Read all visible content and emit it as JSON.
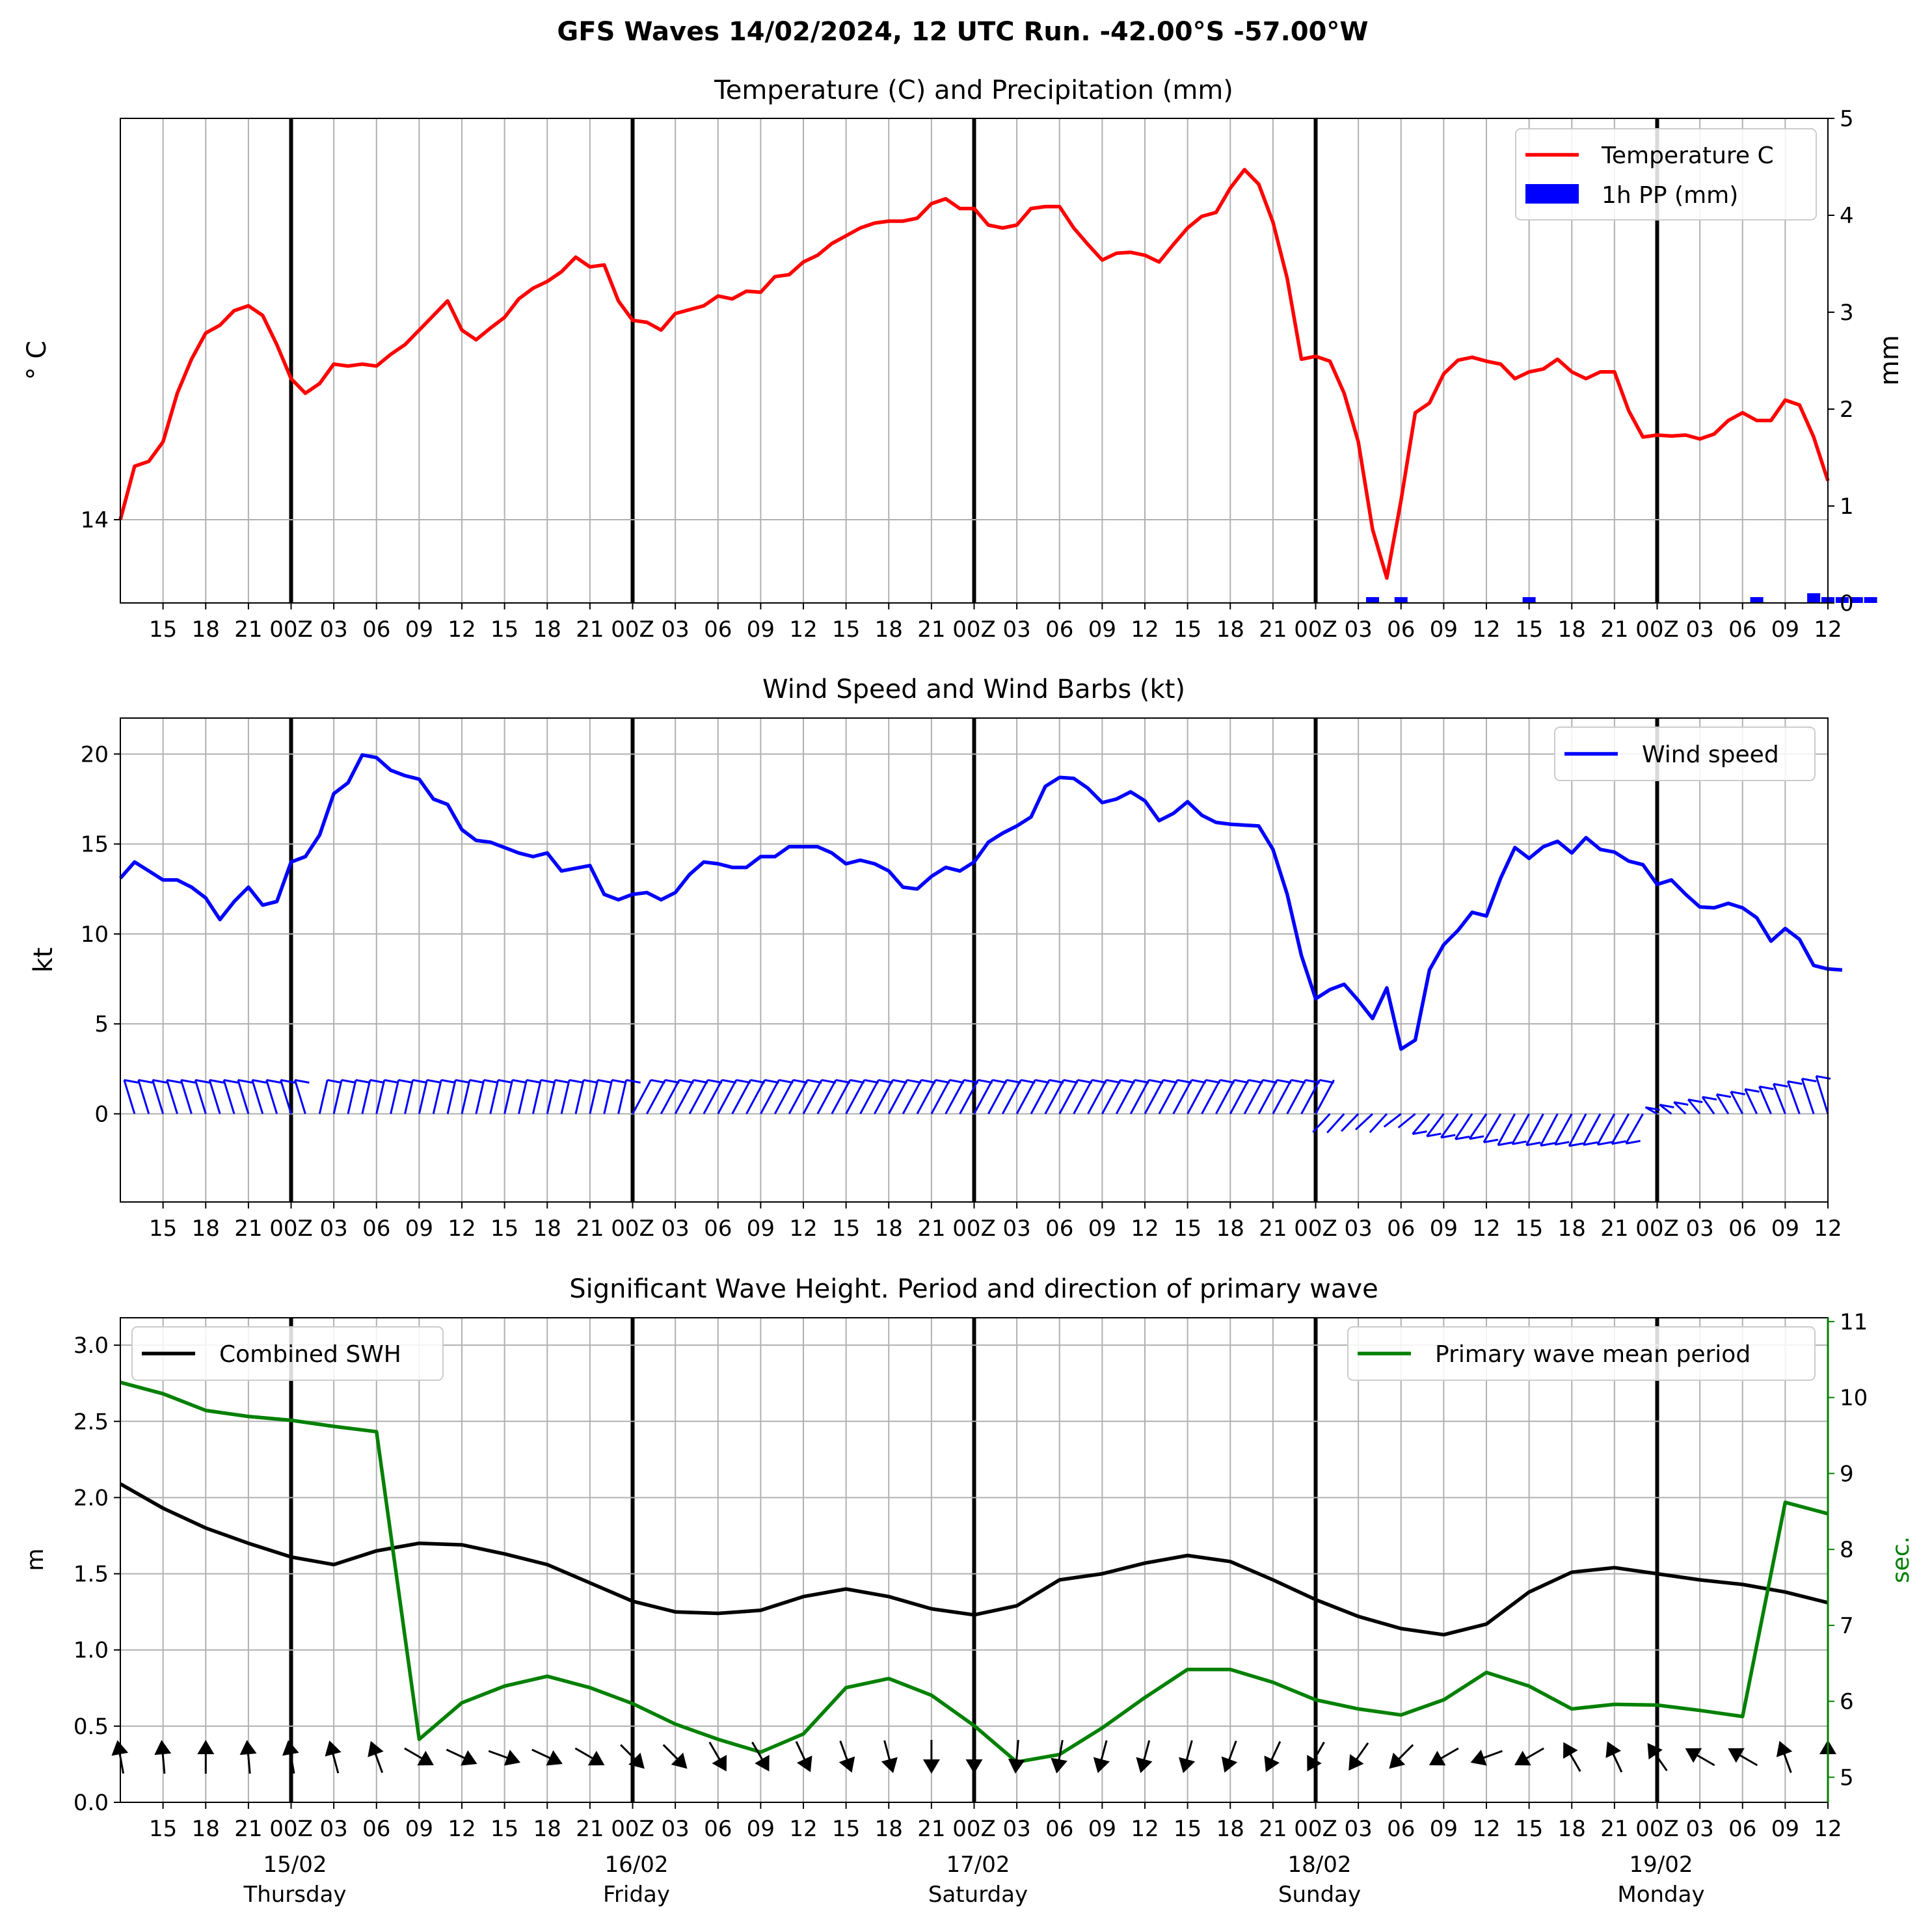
{
  "suptitle": "GFS Waves 14/02/2024, 12 UTC Run. -42.00°S -57.00°W",
  "colors": {
    "temperature": "#ff0000",
    "precip": "#0000ff",
    "wind": "#0000ff",
    "swh": "#000000",
    "period": "#008000",
    "grid": "#b0b0b0"
  },
  "x_tick_labels": [
    "15",
    "18",
    "21",
    "00Z",
    "03",
    "06",
    "09",
    "12",
    "15",
    "18",
    "21",
    "00Z",
    "03",
    "06",
    "09",
    "12",
    "15",
    "18",
    "21",
    "00Z",
    "03",
    "06",
    "09",
    "12",
    "15",
    "18",
    "21",
    "00Z",
    "03",
    "06",
    "09",
    "12",
    "15",
    "18",
    "21",
    "00Z",
    "03",
    "06",
    "09",
    "12"
  ],
  "day_labels": [
    {
      "date": "15/02",
      "day": "Thursday"
    },
    {
      "date": "16/02",
      "day": "Friday"
    },
    {
      "date": "17/02",
      "day": "Saturday"
    },
    {
      "date": "18/02",
      "day": "Sunday"
    },
    {
      "date": "19/02",
      "day": "Monday"
    }
  ],
  "chart_data": [
    {
      "type": "line",
      "title": "Temperature (C) and Precipitation (mm)",
      "ylabel": "° C",
      "y2label": "mm",
      "xlim_hours": [
        0,
        120
      ],
      "x_step_hours": 1,
      "y_ticks": [
        14
      ],
      "y_tick_labels": [
        "14"
      ],
      "y2lim": [
        0,
        5
      ],
      "y2_ticks": [
        0,
        1,
        2,
        3,
        4,
        5
      ],
      "legend": [
        "Temperature C",
        "1h PP (mm)"
      ],
      "legend_loc": "upper right",
      "grid": true,
      "series": [
        {
          "name": "Temperature C",
          "color": "#ff0000",
          "values": [
            14.0,
            14.55,
            14.6,
            14.8,
            15.3,
            15.65,
            15.92,
            16.0,
            16.15,
            16.2,
            16.1,
            15.8,
            15.45,
            15.3,
            15.4,
            15.6,
            15.58,
            15.6,
            15.58,
            15.7,
            15.8,
            15.95,
            16.1,
            16.25,
            15.95,
            15.85,
            15.97,
            16.08,
            16.27,
            16.38,
            16.45,
            16.55,
            16.7,
            16.6,
            16.62,
            16.25,
            16.05,
            16.03,
            15.95,
            16.12,
            16.16,
            16.2,
            16.3,
            16.27,
            16.35,
            16.34,
            16.5,
            16.52,
            16.65,
            16.72,
            16.84,
            16.92,
            17.0,
            17.05,
            17.07,
            17.07,
            17.1,
            17.25,
            17.3,
            17.2,
            17.2,
            17.03,
            17.0,
            17.03,
            17.2,
            17.22,
            17.22,
            17.0,
            16.83,
            16.67,
            16.74,
            16.75,
            16.72,
            16.65,
            16.83,
            17.0,
            17.12,
            17.16,
            17.41,
            17.6,
            17.45,
            17.06,
            16.48,
            15.65,
            15.68,
            15.63,
            15.3,
            14.8,
            13.9,
            13.4,
            14.2,
            15.1,
            15.2,
            15.5,
            15.64,
            15.67,
            15.63,
            15.6,
            15.45,
            15.52,
            15.55,
            15.65,
            15.52,
            15.45,
            15.52,
            15.52,
            15.12,
            14.85,
            14.87,
            14.86,
            14.87,
            14.83,
            14.88,
            15.02,
            15.1,
            15.02,
            15.02,
            15.23,
            15.18,
            14.85,
            14.4
          ]
        },
        {
          "name": "1h PP (mm)",
          "color": "#0000ff",
          "axis": "right",
          "values": [
            0,
            0,
            0,
            0,
            0,
            0,
            0,
            0,
            0,
            0,
            0,
            0,
            0,
            0,
            0,
            0,
            0,
            0,
            0,
            0,
            0,
            0,
            0,
            0,
            0,
            0,
            0,
            0,
            0,
            0,
            0,
            0,
            0,
            0,
            0,
            0,
            0,
            0,
            0,
            0,
            0,
            0,
            0,
            0,
            0,
            0,
            0,
            0,
            0,
            0,
            0,
            0,
            0,
            0,
            0,
            0,
            0,
            0,
            0,
            0,
            0,
            0,
            0,
            0,
            0,
            0,
            0,
            0,
            0,
            0,
            0,
            0,
            0,
            0,
            0,
            0,
            0,
            0,
            0,
            0,
            0,
            0,
            0,
            0,
            0,
            0,
            0,
            0,
            0.06,
            0,
            0.06,
            0,
            0,
            0,
            0,
            0,
            0,
            0,
            0,
            0.06,
            0,
            0,
            0,
            0,
            0,
            0,
            0,
            0,
            0,
            0,
            0,
            0,
            0,
            0,
            0,
            0.06,
            0,
            0,
            0,
            0.1,
            0.06,
            0.06,
            0.06,
            0.06,
            0,
            0
          ]
        }
      ]
    },
    {
      "type": "line",
      "title": "Wind Speed and Wind Barbs (kt)",
      "ylabel": "kt",
      "xlim_hours": [
        0,
        120
      ],
      "x_step_hours": 1,
      "ylim": [
        -4.9,
        22
      ],
      "y_ticks": [
        0,
        5,
        10,
        15,
        20
      ],
      "legend": [
        "Wind speed"
      ],
      "legend_loc": "upper right",
      "grid": true,
      "series": [
        {
          "name": "Wind speed",
          "color": "#0000ff",
          "values": [
            13.1,
            14.0,
            13.5,
            13.0,
            13.0,
            12.6,
            12.0,
            10.8,
            11.8,
            12.6,
            11.6,
            11.8,
            14.0,
            14.3,
            15.5,
            17.8,
            18.4,
            19.95,
            19.8,
            19.1,
            18.8,
            18.6,
            17.5,
            17.2,
            15.8,
            15.2,
            15.1,
            14.8,
            14.5,
            14.3,
            14.5,
            13.5,
            13.65,
            13.8,
            12.2,
            11.9,
            12.2,
            12.3,
            11.9,
            12.3,
            13.3,
            14.0,
            13.9,
            13.7,
            13.7,
            14.3,
            14.3,
            14.85,
            14.85,
            14.85,
            14.5,
            13.9,
            14.1,
            13.9,
            13.5,
            12.6,
            12.5,
            13.2,
            13.7,
            13.5,
            14.0,
            15.1,
            15.6,
            16.0,
            16.5,
            18.2,
            18.7,
            18.65,
            18.1,
            17.3,
            17.5,
            17.9,
            17.4,
            16.3,
            16.7,
            17.35,
            16.6,
            16.2,
            16.1,
            16.05,
            16.0,
            14.7,
            12.2,
            8.8,
            6.4,
            6.9,
            7.2,
            6.3,
            5.3,
            7.0,
            3.6,
            4.1,
            8.0,
            9.4,
            10.2,
            11.2,
            11.0,
            13.1,
            14.8,
            14.2,
            14.85,
            15.15,
            14.5,
            15.35,
            14.7,
            14.55,
            14.05,
            13.85,
            12.75,
            13.0,
            12.2,
            11.5,
            11.45,
            11.7,
            11.45,
            10.9,
            9.6,
            10.3,
            9.7,
            8.25,
            8.05,
            8.0
          ]
        }
      ]
    },
    {
      "type": "line",
      "title": "Significant Wave Height. Period and direction of primary wave",
      "ylabel": "m",
      "y2label": "sec.",
      "xlim_hours": [
        0,
        120
      ],
      "x_step_hours": 3,
      "ylim": [
        0,
        3.18
      ],
      "y_ticks": [
        0.0,
        0.5,
        1.0,
        1.5,
        2.0,
        2.5,
        3.0
      ],
      "y2lim": [
        4.67,
        11.05
      ],
      "y2_ticks": [
        5,
        6,
        7,
        8,
        9,
        10,
        11
      ],
      "legend_left": [
        "Combined SWH"
      ],
      "legend_right": [
        "Primary wave mean period"
      ],
      "grid": true,
      "series": [
        {
          "name": "Combined SWH",
          "color": "#000000",
          "values": [
            2.09,
            1.93,
            1.8,
            1.7,
            1.61,
            1.56,
            1.65,
            1.7,
            1.69,
            1.63,
            1.56,
            1.44,
            1.32,
            1.25,
            1.24,
            1.26,
            1.35,
            1.4,
            1.35,
            1.27,
            1.23,
            1.29,
            1.46,
            1.5,
            1.57,
            1.62,
            1.58,
            1.46,
            1.33,
            1.22,
            1.14,
            1.1,
            1.17,
            1.38,
            1.51,
            1.54,
            1.5,
            1.46,
            1.43,
            1.38,
            1.31
          ]
        },
        {
          "name": "Primary wave mean period",
          "color": "#008000",
          "axis": "right",
          "values": [
            10.2,
            10.05,
            9.83,
            9.75,
            9.7,
            9.62,
            9.55,
            5.5,
            5.98,
            6.2,
            6.33,
            6.18,
            5.97,
            5.7,
            5.5,
            5.33,
            5.57,
            6.18,
            6.3,
            6.08,
            5.68,
            5.2,
            5.3,
            5.65,
            6.05,
            6.42,
            6.42,
            6.25,
            6.02,
            5.9,
            5.82,
            6.02,
            6.38,
            6.2,
            5.9,
            5.96,
            5.95,
            5.88,
            5.8,
            8.62,
            8.47
          ]
        }
      ],
      "direction_arrows_deg_from_north": [
        -10,
        -5,
        0,
        -5,
        -10,
        -15,
        -20,
        120,
        115,
        110,
        115,
        120,
        135,
        135,
        150,
        150,
        155,
        160,
        165,
        180,
        180,
        185,
        190,
        195,
        195,
        195,
        200,
        205,
        210,
        215,
        225,
        240,
        250,
        240,
        -30,
        -25,
        -35,
        -60,
        -60,
        -20,
        0
      ]
    }
  ]
}
